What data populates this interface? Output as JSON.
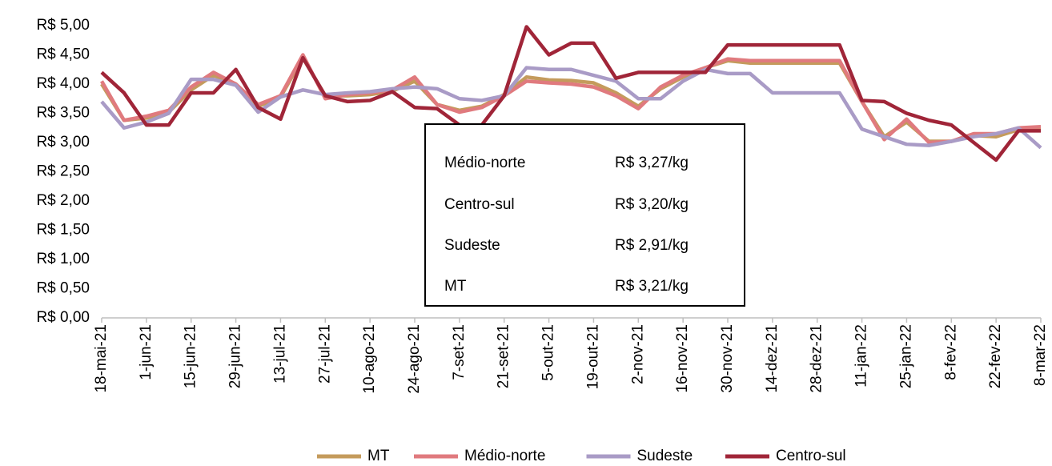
{
  "chart_data": {
    "type": "line",
    "categories": [
      "18-mai-21",
      null,
      "1-jun-21",
      null,
      "15-jun-21",
      null,
      "29-jun-21",
      null,
      "13-jul-21",
      null,
      "27-jul-21",
      null,
      "10-ago-21",
      null,
      "24-ago-21",
      null,
      "7-set-21",
      null,
      "21-set-21",
      null,
      "5-out-21",
      null,
      "19-out-21",
      null,
      "2-nov-21",
      null,
      "16-nov-21",
      null,
      "30-nov-21",
      null,
      "14-dez-21",
      null,
      "28-dez-21",
      null,
      "11-jan-22",
      null,
      "25-jan-22",
      null,
      "8-fev-22",
      null,
      "22-fev-22",
      null,
      "8-mar-22"
    ],
    "series": [
      {
        "name": "MT",
        "color": "#c49b5c",
        "values": [
          4.0,
          3.38,
          3.42,
          3.52,
          3.9,
          4.15,
          4.0,
          3.62,
          3.78,
          4.45,
          3.8,
          3.8,
          3.82,
          3.88,
          4.05,
          3.65,
          3.55,
          3.62,
          3.82,
          4.12,
          4.07,
          4.06,
          4.02,
          3.85,
          3.62,
          3.92,
          4.12,
          4.28,
          4.4,
          4.36,
          4.36,
          4.36,
          4.36,
          4.36,
          3.7,
          3.1,
          3.35,
          3.02,
          3.02,
          3.12,
          3.1,
          3.22,
          3.21
        ]
      },
      {
        "name": "Médio-norte",
        "color": "#e07a7e",
        "values": [
          4.05,
          3.38,
          3.45,
          3.55,
          3.95,
          4.2,
          4.0,
          3.65,
          3.8,
          4.5,
          3.75,
          3.82,
          3.85,
          3.9,
          4.12,
          3.65,
          3.52,
          3.6,
          3.8,
          4.05,
          4.02,
          4.0,
          3.95,
          3.8,
          3.58,
          3.95,
          4.15,
          4.28,
          4.43,
          4.4,
          4.4,
          4.4,
          4.4,
          4.4,
          3.7,
          3.05,
          3.4,
          3.0,
          3.02,
          3.15,
          3.15,
          3.25,
          3.27
        ]
      },
      {
        "name": "Sudeste",
        "color": "#a99bc6",
        "values": [
          3.7,
          3.25,
          3.35,
          3.5,
          4.08,
          4.08,
          3.98,
          3.52,
          3.78,
          3.9,
          3.82,
          3.85,
          3.87,
          3.92,
          3.95,
          3.92,
          3.75,
          3.72,
          3.8,
          4.28,
          4.25,
          4.25,
          4.15,
          4.05,
          3.75,
          3.75,
          4.05,
          4.25,
          4.18,
          4.18,
          3.85,
          3.85,
          3.85,
          3.85,
          3.23,
          3.1,
          2.97,
          2.95,
          3.02,
          3.1,
          3.15,
          3.25,
          2.91
        ]
      },
      {
        "name": "Centro-sul",
        "color": "#a02538",
        "values": [
          4.2,
          3.85,
          3.3,
          3.3,
          3.85,
          3.85,
          4.25,
          3.6,
          3.4,
          4.45,
          3.8,
          3.7,
          3.72,
          3.87,
          3.6,
          3.58,
          3.3,
          3.3,
          3.8,
          4.98,
          4.5,
          4.7,
          4.7,
          4.1,
          4.2,
          4.2,
          4.2,
          4.2,
          4.67,
          4.67,
          4.67,
          4.67,
          4.67,
          4.67,
          3.72,
          3.7,
          3.5,
          3.38,
          3.3,
          3.0,
          2.7,
          3.2,
          3.2
        ]
      }
    ],
    "ylim": [
      0,
      5
    ],
    "yticks": [
      {
        "value": 0,
        "label": "R$ 0,00"
      },
      {
        "value": 0.5,
        "label": "R$ 0,50"
      },
      {
        "value": 1,
        "label": "R$ 1,00"
      },
      {
        "value": 1.5,
        "label": "R$ 1,50"
      },
      {
        "value": 2,
        "label": "R$ 2,00"
      },
      {
        "value": 2.5,
        "label": "R$ 2,50"
      },
      {
        "value": 3,
        "label": "R$ 3,00"
      },
      {
        "value": 3.5,
        "label": "R$ 3,50"
      },
      {
        "value": 4,
        "label": "R$ 4,00"
      },
      {
        "value": 4.5,
        "label": "R$ 4,50"
      },
      {
        "value": 5,
        "label": "R$ 5,00"
      }
    ],
    "grid": false,
    "legend": "bottom",
    "annotation_table": [
      [
        "Médio-norte",
        "R$ 3,27/kg"
      ],
      [
        "Centro-sul",
        "R$ 3,20/kg"
      ],
      [
        "Sudeste",
        "R$ 2,91/kg"
      ],
      [
        "MT",
        "R$ 3,21/kg"
      ]
    ]
  }
}
